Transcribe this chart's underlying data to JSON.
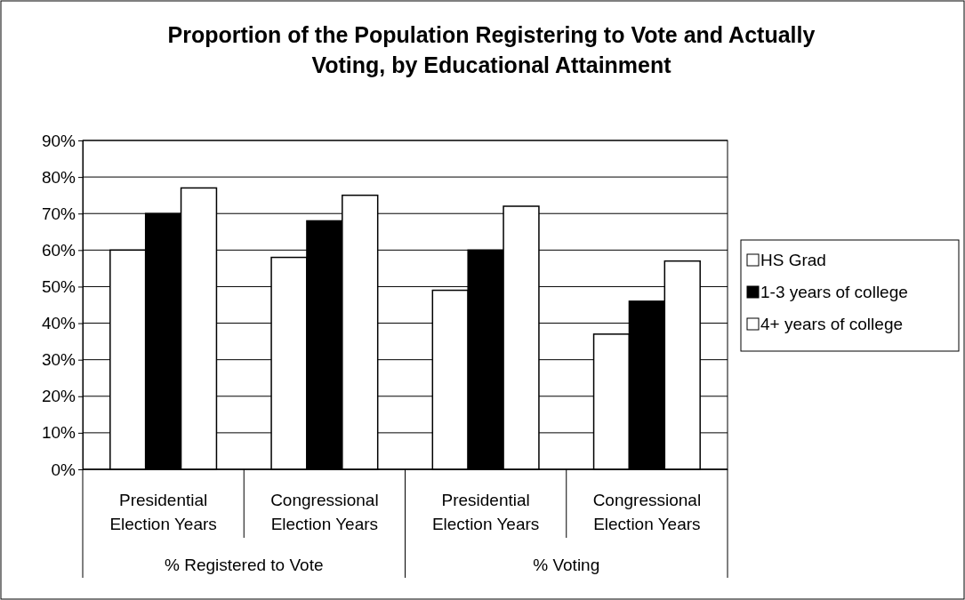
{
  "chart_data": {
    "type": "bar",
    "title": "Proportion of the Population Registering to Vote and Actually Voting, by Educational Attainment",
    "categories": [
      "Presidential Election Years",
      "Congressional Election Years",
      "Presidential Election Years",
      "Congressional Election Years"
    ],
    "series": [
      {
        "name": "HS Grad",
        "color": "#ffffff",
        "values": [
          60,
          58,
          49,
          37
        ]
      },
      {
        "name": "1-3 years of college",
        "color": "#000000",
        "values": [
          70,
          68,
          60,
          46
        ]
      },
      {
        "name": "4+ years of college",
        "color": "#ffffff",
        "values": [
          77,
          75,
          72,
          57
        ]
      }
    ],
    "annotations": [
      "% Registered to Vote",
      "% Voting"
    ],
    "ylim": [
      0,
      90
    ],
    "yticks": [
      {
        "value": 0,
        "label": "0%"
      },
      {
        "value": 10,
        "label": "10%"
      },
      {
        "value": 20,
        "label": "20%"
      },
      {
        "value": 30,
        "label": "30%"
      },
      {
        "value": 40,
        "label": "40%"
      },
      {
        "value": 50,
        "label": "50%"
      },
      {
        "value": 60,
        "label": "60%"
      },
      {
        "value": 70,
        "label": "70%"
      },
      {
        "value": 80,
        "label": "80%"
      },
      {
        "value": 90,
        "label": "90%"
      }
    ],
    "grid": "y",
    "legend": "right"
  }
}
